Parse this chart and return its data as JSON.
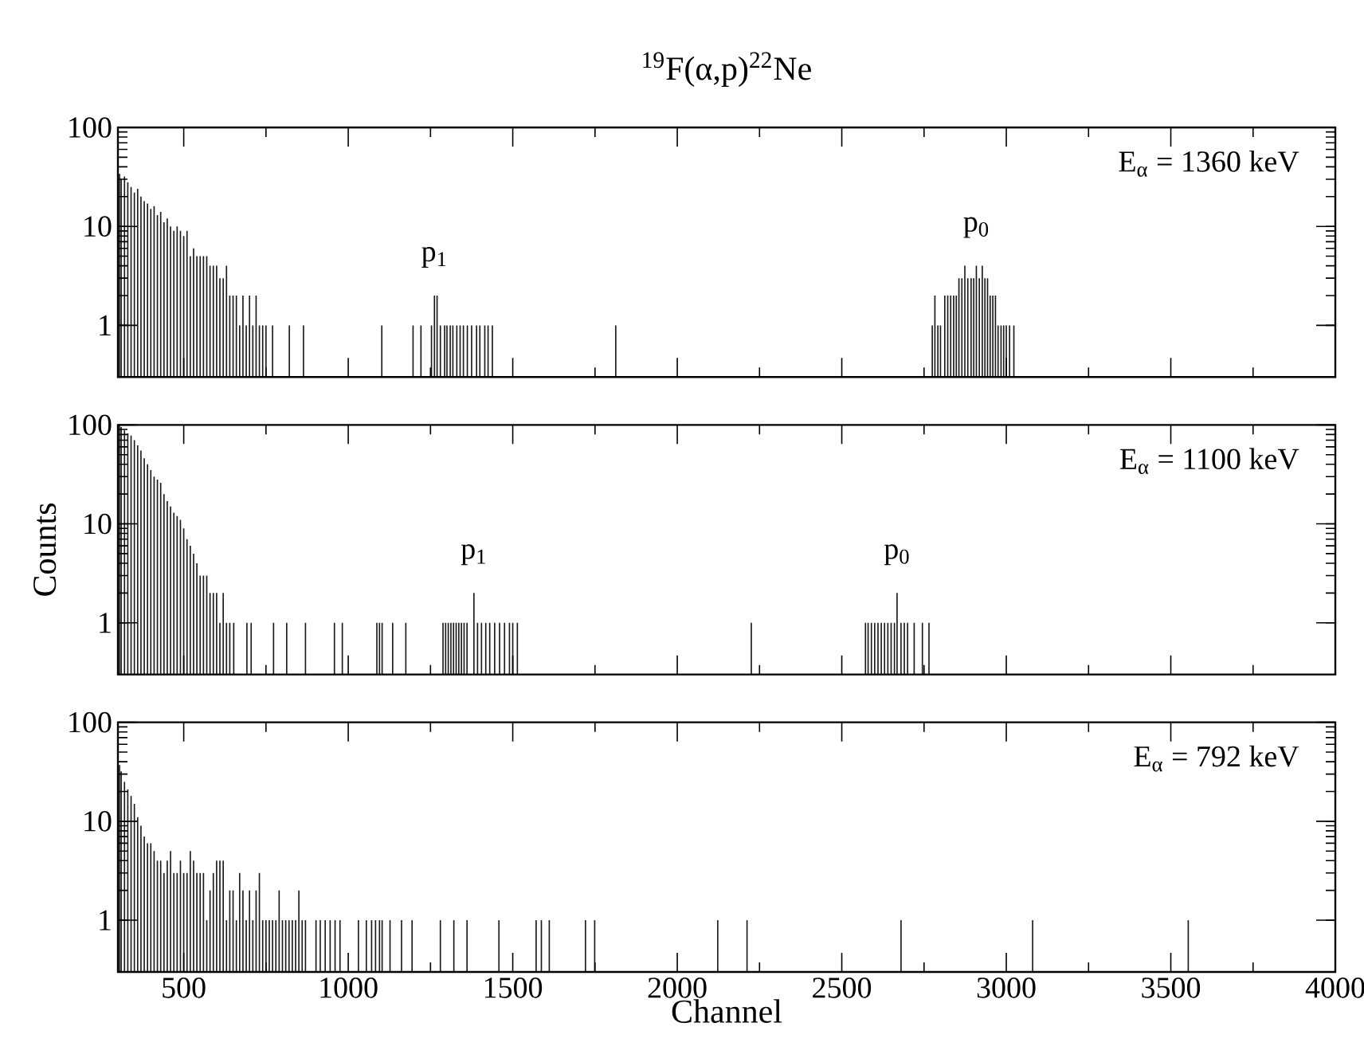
{
  "chart_data": [
    {
      "type": "bar",
      "title": "$^{19}$F(α,p)$^{22}$Ne",
      "color": "#1a1a1a",
      "log": "y",
      "tick_labels": "y",
      "xlim": [
        300,
        4000
      ],
      "ylim": [
        0.3,
        100
      ],
      "xticks": [
        500,
        {
          "value": 750,
          "label": null
        },
        1000,
        {
          "value": 1250,
          "label": null
        },
        1500,
        {
          "value": 1750,
          "label": null
        },
        2000,
        {
          "value": 2250,
          "label": null
        },
        2500,
        {
          "value": 2750,
          "label": null
        },
        3000,
        {
          "value": 3250,
          "label": null
        },
        3500,
        {
          "value": 3750,
          "label": null
        },
        4000
      ],
      "yticks": [
        1,
        10,
        100
      ],
      "annotations": [
        "E$_{α}$ = 1360 keV",
        {
          "text": "p$_{1}$",
          "x": 1262,
          "y": 2
        },
        {
          "text": "p$_{0}$",
          "x": 2909,
          "y": 4
        }
      ],
      "x": [
        305,
        310,
        320,
        330,
        340,
        350,
        360,
        370,
        380,
        390,
        400,
        410,
        420,
        430,
        440,
        450,
        460,
        470,
        480,
        490,
        500,
        510,
        520,
        530,
        540,
        550,
        560,
        570,
        580,
        590,
        600,
        610,
        620,
        630,
        640,
        650,
        660,
        670,
        680,
        690,
        700,
        710,
        720,
        730,
        740,
        750,
        770,
        821,
        864,
        1102,
        1197,
        1221,
        1253,
        1262,
        1270,
        1280,
        1293,
        1300,
        1310,
        1318,
        1330,
        1340,
        1350,
        1362,
        1375,
        1390,
        1400,
        1415,
        1425,
        1438,
        1813,
        2775,
        2783,
        2792,
        2800,
        2813,
        2822,
        2831,
        2840,
        2848,
        2856,
        2865,
        2874,
        2883,
        2893,
        2901,
        2909,
        2918,
        2927,
        2935,
        2943,
        2951,
        2959,
        2967,
        2975,
        2984,
        2992,
        3000,
        3010,
        3023
      ],
      "values": [
        34,
        30,
        32,
        28,
        25,
        22,
        24,
        20,
        18,
        17,
        15,
        16,
        13,
        14,
        11,
        12,
        10,
        9,
        10,
        9,
        8,
        9,
        5,
        6,
        5,
        5,
        5,
        5,
        4,
        4,
        4,
        3,
        3,
        4,
        2,
        2,
        2,
        1,
        2,
        1,
        2,
        1,
        2,
        1,
        1,
        1,
        1,
        1,
        1,
        1,
        1,
        1,
        1,
        2,
        2,
        1,
        1,
        1,
        1,
        1,
        1,
        1,
        1,
        1,
        1,
        1,
        1,
        1,
        1,
        1,
        1,
        1,
        2,
        1,
        1,
        2,
        2,
        2,
        2,
        2,
        3,
        3,
        4,
        3,
        3,
        3,
        4,
        3,
        4,
        3,
        3,
        2,
        2,
        2,
        1,
        1,
        1,
        1,
        1,
        1
      ]
    },
    {
      "type": "bar",
      "ylabel": "Counts",
      "color": "#1a1a1a",
      "log": "y",
      "tick_labels": "y",
      "xlim": [
        300,
        4000
      ],
      "ylim": [
        0.3,
        100
      ],
      "xticks": [
        500,
        {
          "value": 750,
          "label": null
        },
        1000,
        {
          "value": 1250,
          "label": null
        },
        1500,
        {
          "value": 1750,
          "label": null
        },
        2000,
        {
          "value": 2250,
          "label": null
        },
        2500,
        {
          "value": 2750,
          "label": null
        },
        3000,
        {
          "value": 3250,
          "label": null
        },
        3500,
        {
          "value": 3750,
          "label": null
        },
        4000
      ],
      "yticks": [
        1,
        10,
        100
      ],
      "annotations": [
        "E$_{α}$ = 1100 keV",
        {
          "text": "p$_{1}$",
          "x": 1382,
          "y": 2
        },
        {
          "text": "p$_{0}$",
          "x": 2668,
          "y": 2
        }
      ],
      "x": [
        305,
        310,
        320,
        330,
        340,
        350,
        360,
        370,
        380,
        390,
        400,
        410,
        420,
        430,
        440,
        450,
        460,
        470,
        480,
        490,
        500,
        510,
        520,
        530,
        540,
        550,
        560,
        570,
        580,
        590,
        600,
        610,
        620,
        630,
        640,
        652,
        692,
        705,
        773,
        813,
        870,
        958,
        982,
        1087,
        1095,
        1103,
        1135,
        1175,
        1288,
        1296,
        1304,
        1312,
        1320,
        1328,
        1336,
        1344,
        1352,
        1361,
        1382,
        1393,
        1405,
        1418,
        1430,
        1445,
        1460,
        1475,
        1490,
        1500,
        1514,
        2225,
        2572,
        2580,
        2590,
        2600,
        2610,
        2620,
        2630,
        2640,
        2650,
        2660,
        2668,
        2680,
        2690,
        2700,
        2720,
        2745,
        2765
      ],
      "values": [
        100,
        95,
        88,
        82,
        78,
        70,
        62,
        55,
        46,
        40,
        35,
        30,
        28,
        26,
        20,
        17,
        15,
        13,
        12,
        11,
        9,
        7,
        6,
        5,
        4,
        3,
        3,
        3,
        2,
        2,
        2,
        1,
        2,
        1,
        1,
        1,
        1,
        1,
        1,
        1,
        1,
        1,
        1,
        1,
        1,
        1,
        1,
        1,
        1,
        1,
        1,
        1,
        1,
        1,
        1,
        1,
        1,
        1,
        2,
        1,
        1,
        1,
        1,
        1,
        1,
        1,
        1,
        1,
        1,
        1,
        1,
        1,
        1,
        1,
        1,
        1,
        1,
        1,
        1,
        1,
        2,
        1,
        1,
        1,
        1,
        1,
        1
      ]
    },
    {
      "type": "bar",
      "xlabel": "Channel",
      "color": "#1a1a1a",
      "log": "y",
      "xlim": [
        300,
        4000
      ],
      "ylim": [
        0.3,
        100
      ],
      "xticks": [
        500,
        {
          "value": 750,
          "label": null
        },
        1000,
        {
          "value": 1250,
          "label": null
        },
        1500,
        {
          "value": 1750,
          "label": null
        },
        2000,
        {
          "value": 2250,
          "label": null
        },
        2500,
        {
          "value": 2750,
          "label": null
        },
        3000,
        {
          "value": 3250,
          "label": null
        },
        3500,
        {
          "value": 3750,
          "label": null
        },
        4000
      ],
      "yticks": [
        1,
        10,
        100
      ],
      "annotations": [
        "E$_{α}$ = 792 keV"
      ],
      "x": [
        305,
        310,
        320,
        330,
        340,
        350,
        360,
        370,
        380,
        390,
        400,
        410,
        420,
        430,
        440,
        450,
        460,
        470,
        480,
        490,
        500,
        510,
        520,
        530,
        540,
        550,
        560,
        570,
        580,
        590,
        600,
        610,
        620,
        630,
        640,
        650,
        660,
        670,
        680,
        690,
        700,
        710,
        720,
        730,
        740,
        750,
        760,
        770,
        780,
        790,
        800,
        810,
        820,
        830,
        840,
        850,
        860,
        870,
        902,
        915,
        930,
        945,
        960,
        975,
        1031,
        1055,
        1071,
        1083,
        1095,
        1103,
        1127,
        1162,
        1194,
        1280,
        1321,
        1361,
        1458,
        1571,
        1587,
        1611,
        1721,
        1749,
        2123,
        2212,
        2680,
        3080,
        3553
      ],
      "values": [
        37,
        32,
        25,
        21,
        18,
        15,
        11,
        9,
        7,
        6,
        6,
        5,
        4,
        4,
        3,
        4,
        5,
        3,
        3,
        4,
        3,
        3,
        5,
        4,
        3,
        3,
        3,
        1,
        2,
        3,
        4,
        4,
        4,
        1,
        2,
        2,
        1,
        3,
        2,
        1,
        2,
        1,
        2,
        3,
        1,
        1,
        1,
        1,
        1,
        2,
        1,
        1,
        1,
        1,
        1,
        2,
        1,
        1,
        1,
        1,
        1,
        1,
        1,
        1,
        1,
        1,
        1,
        1,
        1,
        1,
        1,
        1,
        1,
        1,
        1,
        1,
        1,
        1,
        1,
        1,
        1,
        1,
        1,
        1,
        1,
        1,
        1
      ]
    }
  ]
}
